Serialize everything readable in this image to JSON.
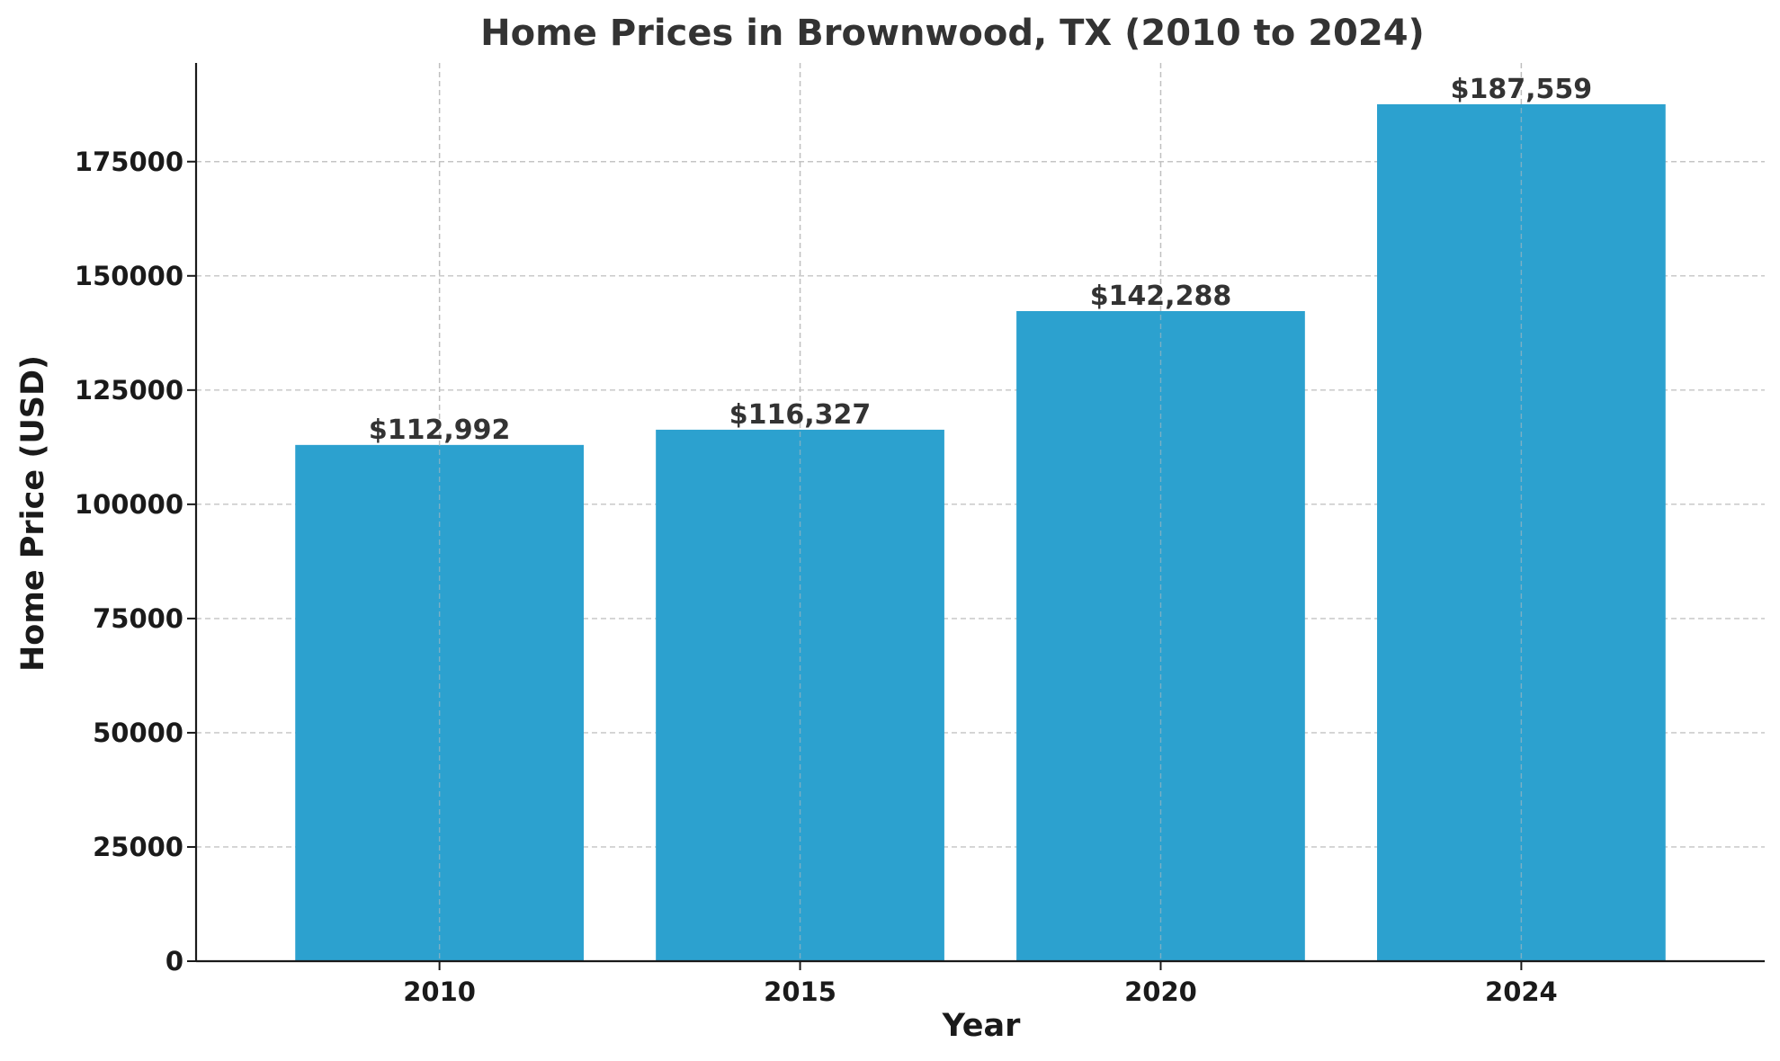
{
  "chart_data": {
    "type": "bar",
    "title": "Home Prices in Brownwood, TX (2010 to 2024)",
    "xlabel": "Year",
    "ylabel": "Home Price (USD)",
    "categories": [
      "2010",
      "2015",
      "2020",
      "2024"
    ],
    "values": [
      112992,
      116327,
      142288,
      187559
    ],
    "value_labels": [
      "$112,992",
      "$116,327",
      "$142,288",
      "$187,559"
    ],
    "ylim": [
      0,
      196600
    ],
    "yticks": [
      0,
      25000,
      50000,
      75000,
      100000,
      125000,
      150000,
      175000
    ],
    "ytick_labels": [
      "0",
      "25000",
      "50000",
      "75000",
      "100000",
      "125000",
      "150000",
      "175000"
    ],
    "grid": true,
    "bar_color": "#2ca1cf"
  }
}
